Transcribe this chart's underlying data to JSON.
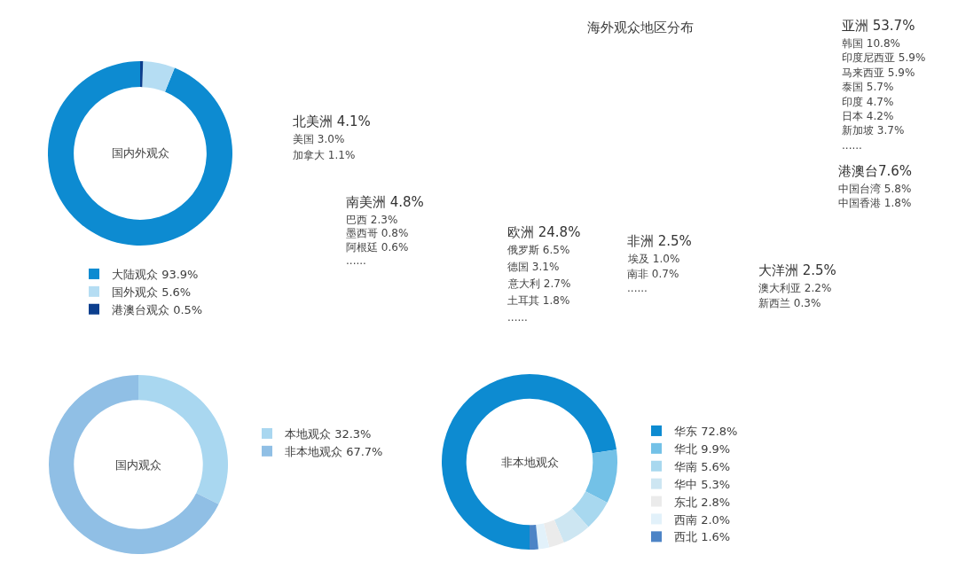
{
  "chart_data": [
    {
      "type": "donut",
      "title": "国内外观众",
      "categories": [
        "大陆观众 93.9%",
        "国外观众 5.6%",
        "港澳台观众 0.5%"
      ],
      "values": [
        93.9,
        5.6,
        0.5
      ],
      "colors": [
        "#0d8bd1",
        "#b5ddf3",
        "#0c3f8e"
      ],
      "legend": "bottom"
    },
    {
      "type": "other",
      "title": "海外观众地区分布",
      "annotations": [
        "北美洲 4.1%",
        "美国 3.0%",
        "加拿大 1.1%",
        "南美洲 4.8%",
        "巴西 2.3%",
        "墨西哥 0.8%",
        "阿根廷 0.6%",
        "......",
        "欧洲 24.8%",
        "俄罗斯 6.5%",
        "德国 3.1%",
        "意大利 2.7%",
        "土耳其 1.8%",
        "......",
        "非洲 2.5%",
        "埃及 1.0%",
        "南非 0.7%",
        "......",
        "大洋洲 2.5%",
        "澳大利亚 2.2%",
        "新西兰 0.3%",
        "亚洲 53.7%",
        "韩国 10.8%",
        "印度尼西亚 5.9%",
        "马来西亚 5.9%",
        "泰国 5.7%",
        "印度 4.7%",
        "日本 4.2%",
        "新加坡 3.7%",
        "......",
        "港澳台7.6%",
        "中国台湾 5.8%",
        "中国香港 1.8%"
      ]
    },
    {
      "type": "donut",
      "title": "国内观众",
      "categories": [
        "本地观众 32.3%",
        "非本地观众 67.7%"
      ],
      "values": [
        32.3,
        67.7
      ],
      "colors": [
        "#a9d7f0",
        "#90bfe5"
      ],
      "legend": "right"
    },
    {
      "type": "donut",
      "title": "非本地观众",
      "categories": [
        "华东 72.8%",
        "华北 9.9%",
        "华南 5.6%",
        "华中 5.3%",
        "东北 2.8%",
        "西南 2.0%",
        "西北 1.6%"
      ],
      "values": [
        72.8,
        9.9,
        5.6,
        5.3,
        2.8,
        2.0,
        1.6
      ],
      "colors": [
        "#0d8bd1",
        "#73c1e7",
        "#a8d8ef",
        "#cde6f2",
        "#ebebeb",
        "#e2f1fa",
        "#4d84c6"
      ],
      "legend": "right"
    }
  ]
}
